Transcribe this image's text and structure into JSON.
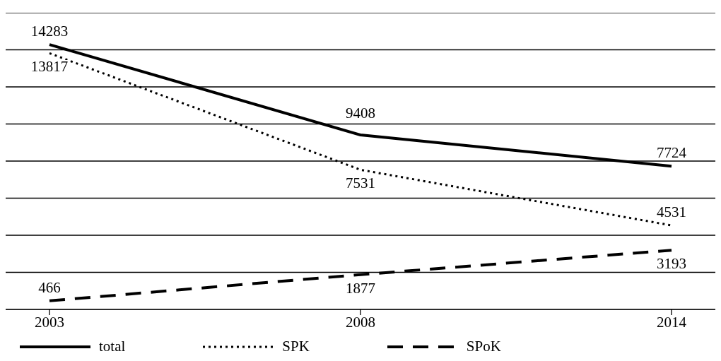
{
  "chart_data": {
    "type": "line",
    "categories": [
      "2003",
      "2008",
      "2014"
    ],
    "series": [
      {
        "name": "total",
        "color": "#000000",
        "line_style": "solid",
        "values": [
          14283,
          9408,
          7724
        ]
      },
      {
        "name": "SPK",
        "color": "#000000",
        "line_style": "dotted",
        "values": [
          13817,
          7531,
          4531
        ]
      },
      {
        "name": "SPoK",
        "color": "#000000",
        "line_style": "dashed",
        "values": [
          466,
          1877,
          3193
        ]
      }
    ],
    "ylim": [
      0,
      16000
    ],
    "yticks": [
      {
        "value": 0,
        "label": null
      },
      {
        "value": 2000,
        "label": null
      },
      {
        "value": 4000,
        "label": null
      },
      {
        "value": 6000,
        "label": null
      },
      {
        "value": 8000,
        "label": null
      },
      {
        "value": 10000,
        "label": null
      },
      {
        "value": 12000,
        "label": null
      },
      {
        "value": 14000,
        "label": null
      },
      {
        "value": 16000,
        "label": null
      }
    ],
    "tick_labels": "x",
    "grid": "y",
    "legend": "bottom",
    "data_labels": true,
    "marker": "none"
  }
}
